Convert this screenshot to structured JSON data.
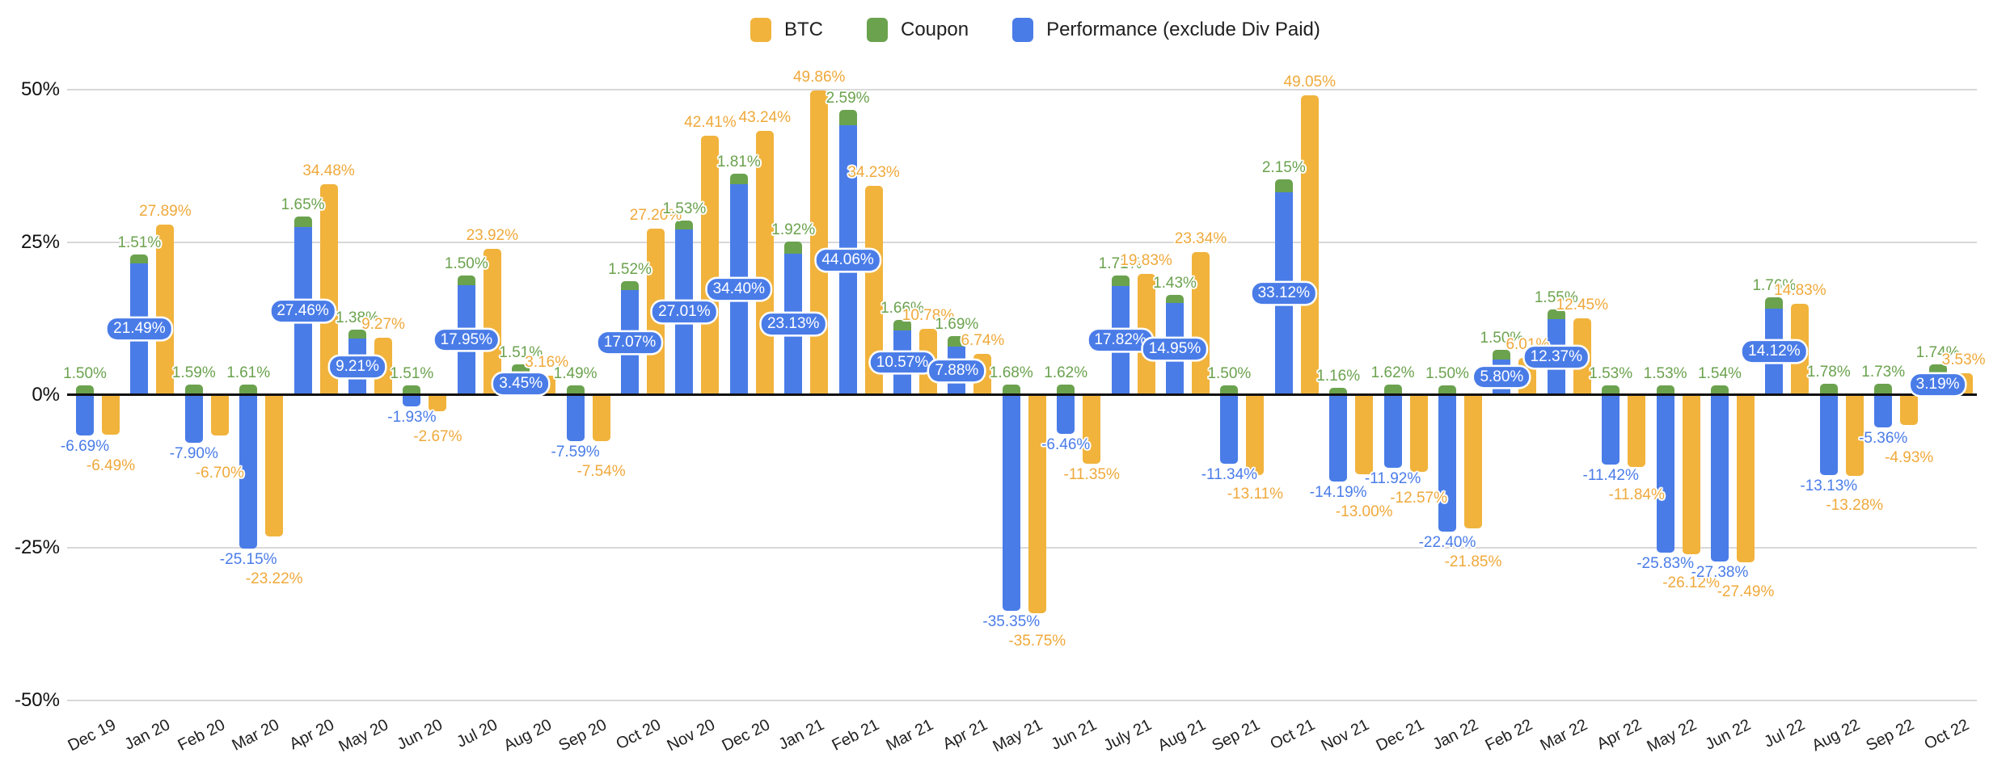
{
  "chart_data": {
    "type": "bar",
    "title": "",
    "legend_position": "top",
    "stacking_note": "Coupon is stacked on top of Performance in one column; BTC is a separate column per month",
    "categories": [
      "Dec 19",
      "Jan 20",
      "Feb 20",
      "Mar 20",
      "Apr 20",
      "May 20",
      "Jun 20",
      "Jul 20",
      "Aug 20",
      "Sep 20",
      "Oct 20",
      "Nov 20",
      "Dec 20",
      "Jan 21",
      "Feb 21",
      "Mar 21",
      "Apr 21",
      "May 21",
      "Jun 21",
      "July 21",
      "Aug 21",
      "Sep 21",
      "Oct 21",
      "Nov 21",
      "Dec 21",
      "Jan 22",
      "Feb 22",
      "Mar 22",
      "Apr 22",
      "May 22",
      "Jun 22",
      "Jul 22",
      "Aug 22",
      "Sep 22",
      "Oct 22"
    ],
    "series": [
      {
        "name": "BTC",
        "color": "#F1B33C",
        "values": [
          -6.49,
          27.89,
          -6.7,
          -23.22,
          34.48,
          9.27,
          -2.67,
          23.92,
          3.16,
          -7.54,
          27.2,
          42.41,
          43.24,
          49.86,
          34.23,
          10.78,
          6.74,
          -35.75,
          -11.35,
          19.83,
          23.34,
          -13.11,
          49.05,
          -13.0,
          -12.57,
          -21.85,
          6.01,
          12.45,
          -11.84,
          -26.12,
          -27.49,
          14.83,
          -13.28,
          -4.93,
          3.53
        ]
      },
      {
        "name": "Coupon",
        "color": "#6BA24E",
        "values": [
          1.5,
          1.51,
          1.59,
          1.61,
          1.65,
          1.38,
          1.51,
          1.5,
          1.51,
          1.49,
          1.52,
          1.53,
          1.81,
          1.92,
          2.59,
          1.66,
          1.69,
          1.68,
          1.62,
          1.71,
          1.43,
          1.5,
          2.15,
          1.16,
          1.62,
          1.5,
          1.5,
          1.55,
          1.53,
          1.53,
          1.54,
          1.76,
          1.78,
          1.73,
          1.74
        ]
      },
      {
        "name": "Performance (exclude Div Paid)",
        "color": "#4A7CE8",
        "values": [
          -6.69,
          21.49,
          -7.9,
          -25.15,
          27.46,
          9.21,
          -1.93,
          17.95,
          3.45,
          -7.59,
          17.07,
          27.01,
          34.4,
          23.13,
          44.06,
          10.57,
          7.88,
          -35.35,
          -6.46,
          17.82,
          14.95,
          -11.34,
          33.12,
          -14.19,
          -11.92,
          -22.4,
          5.8,
          12.37,
          -11.42,
          -25.83,
          -27.38,
          14.12,
          -13.13,
          -5.36,
          3.19
        ]
      }
    ],
    "y_axis": {
      "ticks": [
        50,
        25,
        0,
        -25,
        -50
      ],
      "tick_labels": [
        "50%",
        "25%",
        "0%",
        "-25%",
        "-50%"
      ],
      "ylim": [
        -50,
        50
      ],
      "grid": true
    },
    "label_format": "0.00%"
  },
  "colors": {
    "background": "#ffffff",
    "gridline": "#d8d8d8",
    "zero_line": "#111111",
    "axis_text": "#111111"
  }
}
